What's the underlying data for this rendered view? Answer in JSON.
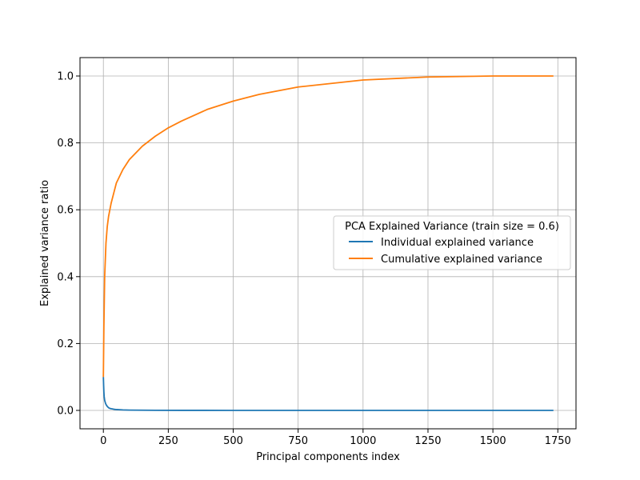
{
  "chart_data": {
    "type": "line",
    "xlabel": "Principal components index",
    "ylabel": "Explained variance ratio",
    "xlim": [
      -90,
      1820
    ],
    "ylim": [
      -0.055,
      1.055
    ],
    "xticks": [
      0,
      250,
      500,
      750,
      1000,
      1250,
      1500,
      1750
    ],
    "yticks": [
      0.0,
      0.2,
      0.4,
      0.6,
      0.8,
      1.0
    ],
    "xtick_labels": [
      "0",
      "250",
      "500",
      "750",
      "1000",
      "1250",
      "1500",
      "1750"
    ],
    "ytick_labels": [
      "0.0",
      "0.2",
      "0.4",
      "0.6",
      "0.8",
      "1.0"
    ],
    "grid": true,
    "legend": {
      "title": "PCA Explained Variance (train size = 0.6)",
      "placement": "center-right"
    },
    "series": [
      {
        "name": "Individual explained variance",
        "color": "#1f77b4",
        "x": [
          0,
          1,
          2,
          3,
          5,
          8,
          10,
          15,
          20,
          25,
          30,
          40,
          50,
          75,
          100,
          150,
          200,
          300,
          500,
          750,
          1000,
          1250,
          1500,
          1733
        ],
        "values": [
          0.1,
          0.075,
          0.055,
          0.042,
          0.03,
          0.022,
          0.018,
          0.012,
          0.008,
          0.006,
          0.005,
          0.0035,
          0.0025,
          0.0015,
          0.001,
          0.0006,
          0.0004,
          0.0002,
          0.0001,
          5e-05,
          2e-05,
          1e-05,
          5e-06,
          0.0
        ]
      },
      {
        "name": "Cumulative explained variance",
        "color": "#ff7f0e",
        "x": [
          0,
          2,
          5,
          10,
          15,
          20,
          30,
          40,
          50,
          75,
          100,
          150,
          200,
          250,
          300,
          400,
          500,
          600,
          750,
          1000,
          1250,
          1500,
          1733
        ],
        "values": [
          0.1,
          0.25,
          0.4,
          0.5,
          0.55,
          0.58,
          0.62,
          0.65,
          0.68,
          0.72,
          0.75,
          0.79,
          0.82,
          0.845,
          0.865,
          0.9,
          0.925,
          0.945,
          0.967,
          0.988,
          0.997,
          1.0,
          1.0
        ]
      }
    ]
  }
}
